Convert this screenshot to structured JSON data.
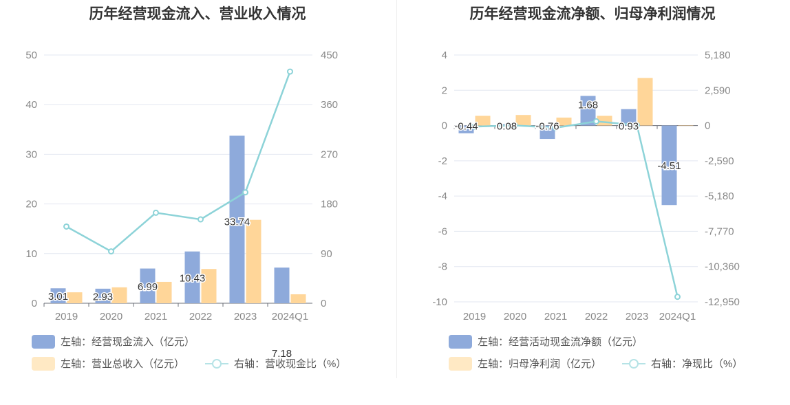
{
  "charts": [
    {
      "title": "历年经营现金流入、营业收入情况",
      "legend": [
        "左轴：经营现金流入（亿元）",
        "左轴：营业总收入（亿元）",
        "右轴：营收现金比（%）"
      ]
    },
    {
      "title": "历年经营现金流净额、归母净利润情况",
      "legend": [
        "左轴：经营活动现金流净额（亿元）",
        "左轴：归母净利润（亿元）",
        "右轴：净现比（%）"
      ]
    }
  ],
  "chart_data": [
    {
      "type": "bar",
      "title": "历年经营现金流入、营业收入情况",
      "categories": [
        "2019",
        "2020",
        "2021",
        "2022",
        "2023",
        "2024Q1"
      ],
      "left_ylim": [
        0,
        50
      ],
      "left_ticks": [
        "0",
        "10",
        "20",
        "30",
        "40",
        "50"
      ],
      "right_ylim": [
        0,
        450
      ],
      "right_ticks": [
        "0",
        "90",
        "180",
        "270",
        "360",
        "450"
      ],
      "series": [
        {
          "name": "左轴：经营现金流入（亿元）",
          "axis": "left",
          "kind": "bar",
          "color": "#8eaadb",
          "values": [
            3.01,
            2.93,
            6.99,
            10.43,
            33.74,
            7.18
          ],
          "labels": [
            "3.01",
            "2.93",
            "6.99",
            "10.43",
            "33.74",
            "7.18"
          ]
        },
        {
          "name": "左轴：营业总收入（亿元）",
          "axis": "left",
          "kind": "bar",
          "color": "#ffd699",
          "values": [
            2.2,
            3.2,
            4.3,
            6.9,
            16.8,
            1.8
          ]
        },
        {
          "name": "右轴：营收现金比（%）",
          "axis": "right",
          "kind": "line",
          "color": "#8dd3d8",
          "values": [
            139,
            94,
            164,
            152,
            201,
            420
          ]
        }
      ],
      "grid": true,
      "legend_position": "bottom"
    },
    {
      "type": "bar",
      "title": "历年经营现金流净额、归母净利润情况",
      "categories": [
        "2019",
        "2020",
        "2021",
        "2022",
        "2023",
        "2024Q1"
      ],
      "left_ylim": [
        -10,
        4
      ],
      "left_ticks": [
        "-10",
        "-8",
        "-6",
        "-4",
        "-2",
        "0",
        "2",
        "4"
      ],
      "right_ylim": [
        -12950,
        5180
      ],
      "right_ticks": [
        "-12,950",
        "-10,360",
        "-7,770",
        "-5,180",
        "-2,590",
        "0",
        "2,590",
        "5,180"
      ],
      "series": [
        {
          "name": "左轴：经营活动现金流净额（亿元）",
          "axis": "left",
          "kind": "bar",
          "color": "#8eaadb",
          "values": [
            -0.44,
            0.08,
            -0.76,
            1.68,
            0.93,
            -4.51
          ],
          "labels": [
            "-0.44",
            "0.08",
            "-0.76",
            "1.68",
            "0.93",
            "-4.51"
          ]
        },
        {
          "name": "左轴：归母净利润（亿元）",
          "axis": "left",
          "kind": "bar",
          "color": "#ffd699",
          "values": [
            0.55,
            0.6,
            0.45,
            0.55,
            2.7,
            0.02
          ]
        },
        {
          "name": "右轴：净现比（%）",
          "axis": "right",
          "kind": "line",
          "color": "#8dd3d8",
          "values": [
            -80,
            13,
            -169,
            305,
            34,
            -12580
          ]
        }
      ],
      "grid": true,
      "legend_position": "bottom"
    }
  ]
}
